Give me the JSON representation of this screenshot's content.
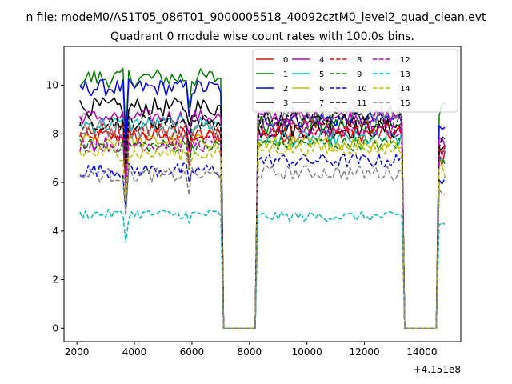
{
  "figure": {
    "suptitle": "n file: modeM0/AS1T05_086T01_9000005518_40092cztM0_level2_quad_clean.evt",
    "title": "Quadrant 0 module wise count rates with 100.0s bins.",
    "offset_label": "+4.151e8"
  },
  "chart_data": {
    "type": "line",
    "title": "Quadrant 0 module wise count rates with 100.0s bins.",
    "xlabel": "",
    "ylabel": "",
    "x_offset": 415100000,
    "xlim": [
      1550,
      15350
    ],
    "ylim": [
      -0.55,
      11.6
    ],
    "xticks": [
      2000,
      4000,
      6000,
      8000,
      10000,
      12000,
      14000
    ],
    "xtick_labels": [
      "2000",
      "4000",
      "6000",
      "8000",
      "10000",
      "12000",
      "14000"
    ],
    "yticks": [
      0,
      2,
      4,
      6,
      8,
      10
    ],
    "ytick_labels": [
      "0",
      "2",
      "4",
      "6",
      "8",
      "10"
    ],
    "grid": false,
    "legend_position": "top-right",
    "legend_columns": 4,
    "segments": [
      {
        "x_start": 2100,
        "x_end": 7000
      },
      {
        "x_start": 8300,
        "x_end": 13300
      },
      {
        "x_start": 14600,
        "x_end": 14800
      }
    ],
    "zero_gaps": [
      [
        7100,
        8200
      ],
      [
        13400,
        14500
      ]
    ],
    "dips": [
      {
        "x": 3700,
        "factor": 0.75
      },
      {
        "x": 5900,
        "factor": 0.9
      }
    ],
    "series": [
      {
        "name": "0",
        "color": "#ff0000",
        "style": "solid",
        "level1": 7.9,
        "level2": 8.0,
        "level3": 7.0,
        "noise": 0.35
      },
      {
        "name": "1",
        "color": "#008000",
        "style": "solid",
        "level1": 10.3,
        "level2": 8.4,
        "level3": 8.9,
        "noise": 0.4
      },
      {
        "name": "2",
        "color": "#0000ff",
        "style": "solid",
        "level1": 9.9,
        "level2": 8.6,
        "level3": 8.5,
        "noise": 0.35
      },
      {
        "name": "3",
        "color": "#000000",
        "style": "solid",
        "level1": 9.1,
        "level2": 8.2,
        "level3": 7.4,
        "noise": 0.4
      },
      {
        "name": "4",
        "color": "#bf00bf",
        "style": "solid",
        "level1": 8.7,
        "level2": 8.7,
        "level3": 7.6,
        "noise": 0.3
      },
      {
        "name": "5",
        "color": "#00bfbf",
        "style": "solid",
        "level1": 8.4,
        "level2": 7.8,
        "level3": 6.9,
        "noise": 0.35
      },
      {
        "name": "6",
        "color": "#bfbf00",
        "style": "solid",
        "level1": 7.7,
        "level2": 7.6,
        "level3": 6.8,
        "noise": 0.3
      },
      {
        "name": "7",
        "color": "#808080",
        "style": "solid",
        "level1": 8.2,
        "level2": 8.8,
        "level3": 7.3,
        "noise": 0.4
      },
      {
        "name": "8",
        "color": "#ff0000",
        "style": "dashed",
        "level1": 8.1,
        "level2": 8.2,
        "level3": 7.3,
        "noise": 0.35
      },
      {
        "name": "9",
        "color": "#008000",
        "style": "dashed",
        "level1": 7.5,
        "level2": 7.6,
        "level3": 6.9,
        "noise": 0.3
      },
      {
        "name": "10",
        "color": "#0000ff",
        "style": "dashed",
        "level1": 6.5,
        "level2": 6.9,
        "level3": 6.2,
        "noise": 0.3
      },
      {
        "name": "11",
        "color": "#000000",
        "style": "dashed",
        "level1": 8.5,
        "level2": 8.6,
        "level3": 7.6,
        "noise": 0.35
      },
      {
        "name": "12",
        "color": "#bf00bf",
        "style": "dashed",
        "level1": 7.6,
        "level2": 8.2,
        "level3": 7.2,
        "noise": 0.35
      },
      {
        "name": "13",
        "color": "#00bfbf",
        "style": "dashed",
        "level1": 4.7,
        "level2": 4.6,
        "level3": 4.3,
        "noise": 0.2
      },
      {
        "name": "14",
        "color": "#bfbf00",
        "style": "dashed",
        "level1": 7.2,
        "level2": 7.4,
        "level3": 6.5,
        "noise": 0.3
      },
      {
        "name": "15",
        "color": "#808080",
        "style": "dashed",
        "level1": 6.3,
        "level2": 6.4,
        "level3": 5.8,
        "noise": 0.3
      }
    ]
  }
}
